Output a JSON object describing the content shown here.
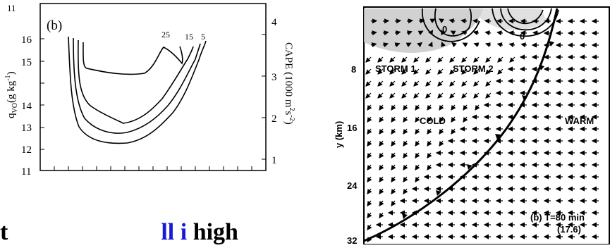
{
  "left_figure": {
    "panel_label": "(b)",
    "left_axis_label": "q",
    "left_axis_sub": "VO",
    "left_axis_units": "(g kg",
    "left_axis_units_sup": "-1",
    "left_axis_units_end": ")",
    "right_axis_label": "CAPE (1000 m",
    "right_axis_label_sup1": "2",
    "right_axis_label_mid": "s",
    "right_axis_label_sup2": "-2",
    "right_axis_label_end": ")",
    "left_ticks": [
      "11",
      "12",
      "13",
      "14",
      "15",
      "16"
    ],
    "right_ticks": [
      "1",
      "2",
      "3",
      "4"
    ],
    "top_tick_partial": "11",
    "contour_labels": [
      "25",
      "15",
      "5"
    ]
  },
  "right_figure": {
    "y_axis_label": "y (km)",
    "y_ticks": [
      "8",
      "16",
      "24",
      "32"
    ],
    "labels": {
      "storm1": "STORM 1",
      "storm2": "STORM 2",
      "cold": "COLD",
      "warm": "WARM",
      "zero1": "0",
      "zero2": "0",
      "panel": "(b) T=80 min",
      "panel_value": "(17.6)"
    }
  },
  "bottom_text": {
    "prefix": "t",
    "link": "ll",
    "middle": " ",
    "link2": "i",
    "suffix": "   high"
  }
}
